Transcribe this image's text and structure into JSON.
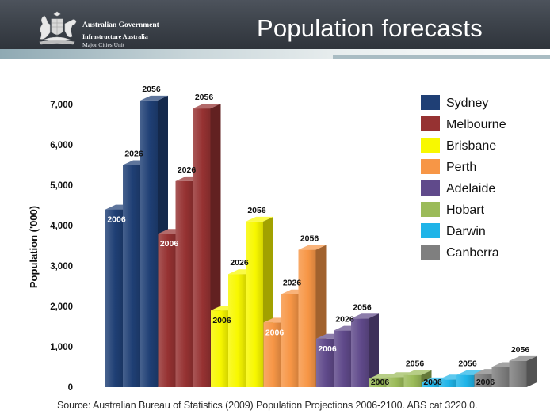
{
  "header": {
    "government": "Australian Government",
    "organisation": "Infrastructure Australia",
    "unit": "Major Cities Unit",
    "title": "Population forecasts"
  },
  "chart_data": {
    "type": "bar",
    "title": "Population forecasts",
    "ylabel": "Population ('000)",
    "xlabel": "",
    "ylim": [
      0,
      7000
    ],
    "yticks": [
      "0",
      "1,000",
      "2,000",
      "3,000",
      "4,000",
      "5,000",
      "6,000",
      "7,000"
    ],
    "grid": false,
    "legend": "top-right",
    "years": [
      "2006",
      "2026",
      "2056"
    ],
    "series": [
      {
        "name": "Sydney",
        "color": "#1f3f75",
        "values": [
          4400,
          5500,
          7100
        ],
        "labels": [
          "2006",
          "2026",
          "2056"
        ]
      },
      {
        "name": "Melbourne",
        "color": "#963232",
        "values": [
          3800,
          5100,
          6900
        ],
        "labels": [
          "2006",
          "2026",
          "2056"
        ]
      },
      {
        "name": "Brisbane",
        "color": "#f8f800",
        "values": [
          1900,
          2800,
          4100
        ],
        "labels": [
          "2006",
          "2026",
          "2056"
        ]
      },
      {
        "name": "Perth",
        "color": "#f79646",
        "values": [
          1600,
          2300,
          3400
        ],
        "labels": [
          "2006",
          "2026",
          "2056"
        ]
      },
      {
        "name": "Adelaide",
        "color": "#604a8b",
        "values": [
          1200,
          1400,
          1700
        ],
        "labels": [
          "2006",
          "2026",
          "2056"
        ]
      },
      {
        "name": "Hobart",
        "color": "#9bbb59",
        "values": [
          210,
          250,
          300
        ],
        "labels": [
          "2006",
          "",
          "2056"
        ]
      },
      {
        "name": "Darwin",
        "color": "#1fb4e8",
        "values": [
          120,
          190,
          300
        ],
        "labels": [
          "2006",
          "",
          "2056"
        ]
      },
      {
        "name": "Canberra",
        "color": "#7f7f7f",
        "values": [
          330,
          500,
          650
        ],
        "labels": [
          "2006",
          "",
          "2056"
        ]
      }
    ]
  },
  "source": "Source: Australian Bureau of Statistics (2009) Population Projections 2006-2100. ABS cat 3220.0."
}
